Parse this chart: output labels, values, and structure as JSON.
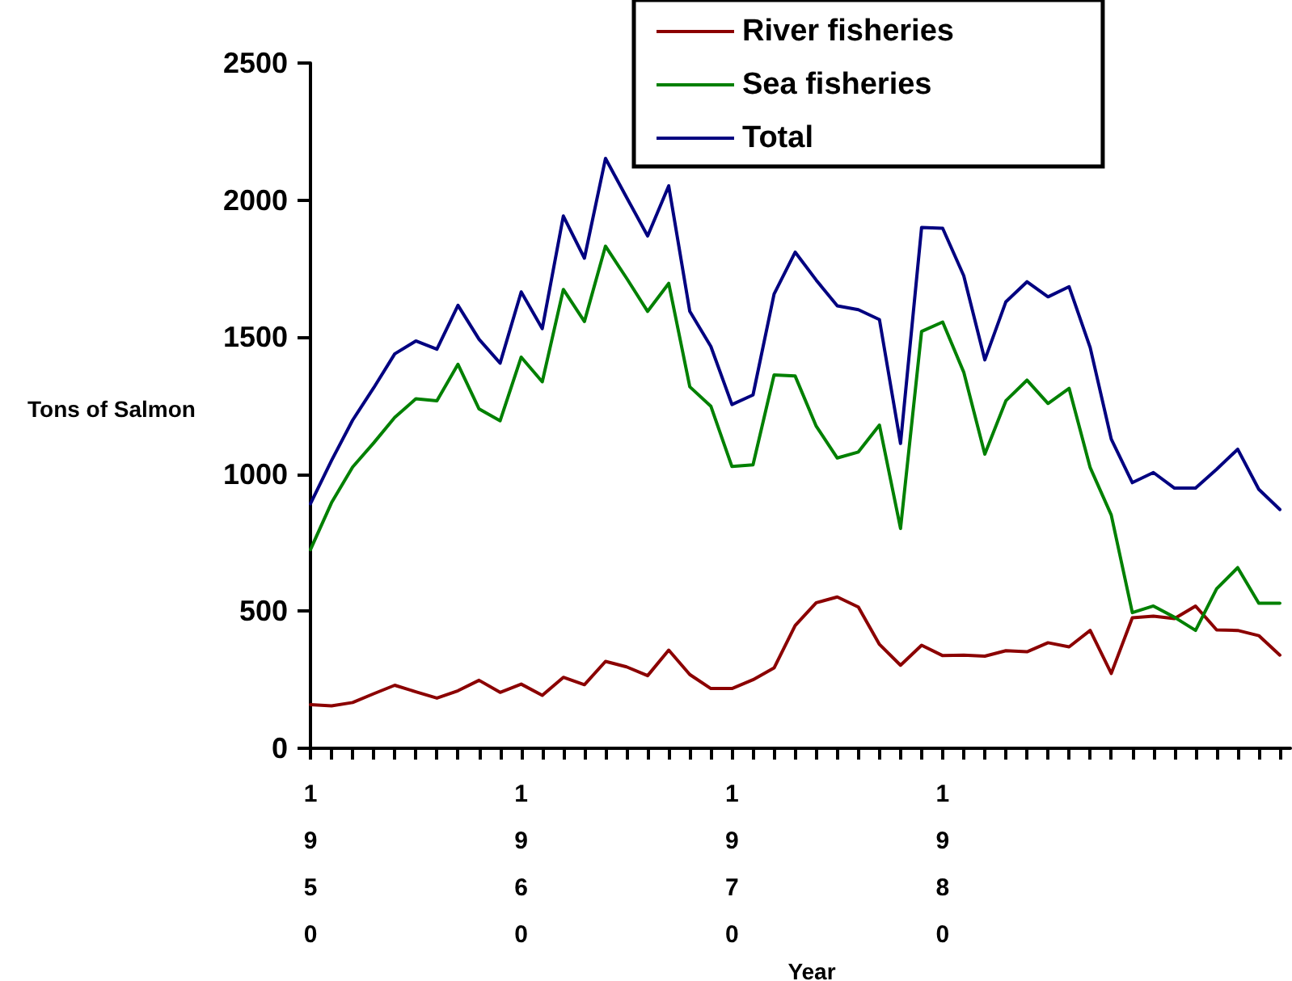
{
  "chart_data": {
    "type": "line",
    "xlabel": "Year",
    "ylabel": "Tons of Salmon",
    "x": [
      1950,
      1951,
      1952,
      1953,
      1954,
      1955,
      1956,
      1957,
      1958,
      1959,
      1960,
      1961,
      1962,
      1963,
      1964,
      1965,
      1966,
      1967,
      1968,
      1969,
      1970,
      1971,
      1972,
      1973,
      1974,
      1975,
      1976,
      1977,
      1978,
      1979,
      1980,
      1981,
      1982,
      1983,
      1984,
      1985,
      1986,
      1987,
      1988,
      1989,
      1990,
      1991,
      1992,
      1993,
      1994,
      1995,
      1996
    ],
    "series": [
      {
        "name": "River fisheries",
        "color": "#8b0000",
        "values": [
          159,
          155,
          167,
          199,
          230,
          206,
          183,
          210,
          248,
          204,
          234,
          193,
          259,
          232,
          317,
          297,
          265,
          358,
          269,
          218,
          218,
          250,
          293,
          448,
          531,
          552,
          515,
          379,
          303,
          376,
          338,
          340,
          336,
          356,
          352,
          385,
          370,
          430,
          273,
          476,
          482,
          473,
          519,
          432,
          430,
          411,
          340
        ]
      },
      {
        "name": "Sea fisheries",
        "color": "#008000",
        "values": [
          725,
          896,
          1026,
          1114,
          1207,
          1275,
          1268,
          1401,
          1238,
          1195,
          1427,
          1337,
          1674,
          1557,
          1832,
          1715,
          1594,
          1696,
          1319,
          1248,
          1028,
          1034,
          1362,
          1358,
          1175,
          1059,
          1081,
          1179,
          802,
          1521,
          1555,
          1372,
          1073,
          1268,
          1343,
          1258,
          1313,
          1024,
          851,
          495,
          519,
          478,
          430,
          582,
          659,
          529,
          529
        ]
      },
      {
        "name": "Total",
        "color": "#000080",
        "values": [
          892,
          1050,
          1197,
          1315,
          1439,
          1486,
          1456,
          1616,
          1492,
          1405,
          1665,
          1531,
          1942,
          1788,
          2152,
          2010,
          1869,
          2052,
          1594,
          1466,
          1254,
          1289,
          1657,
          1810,
          1708,
          1614,
          1600,
          1564,
          1112,
          1900,
          1897,
          1724,
          1417,
          1629,
          1702,
          1647,
          1684,
          1462,
          1128,
          969,
          1006,
          949,
          949,
          1018,
          1091,
          945,
          871
        ]
      }
    ],
    "xlim": [
      1950,
      1996.5
    ],
    "xticks": [
      {
        "value": 1950,
        "label": "1950"
      },
      {
        "value": 1951,
        "label": null
      },
      {
        "value": 1952,
        "label": null
      },
      {
        "value": 1953,
        "label": null
      },
      {
        "value": 1954,
        "label": null
      },
      {
        "value": 1955,
        "label": null
      },
      {
        "value": 1956,
        "label": null
      },
      {
        "value": 1957,
        "label": null
      },
      {
        "value": 1958,
        "label": null
      },
      {
        "value": 1959,
        "label": null
      },
      {
        "value": 1960,
        "label": "1960"
      },
      {
        "value": 1961,
        "label": null
      },
      {
        "value": 1962,
        "label": null
      },
      {
        "value": 1963,
        "label": null
      },
      {
        "value": 1964,
        "label": null
      },
      {
        "value": 1965,
        "label": null
      },
      {
        "value": 1966,
        "label": null
      },
      {
        "value": 1967,
        "label": null
      },
      {
        "value": 1968,
        "label": null
      },
      {
        "value": 1969,
        "label": null
      },
      {
        "value": 1970,
        "label": "1970"
      },
      {
        "value": 1971,
        "label": null
      },
      {
        "value": 1972,
        "label": null
      },
      {
        "value": 1973,
        "label": null
      },
      {
        "value": 1974,
        "label": null
      },
      {
        "value": 1975,
        "label": null
      },
      {
        "value": 1976,
        "label": null
      },
      {
        "value": 1977,
        "label": null
      },
      {
        "value": 1978,
        "label": null
      },
      {
        "value": 1979,
        "label": null
      },
      {
        "value": 1980,
        "label": "1980"
      },
      {
        "value": 1981,
        "label": null
      },
      {
        "value": 1982,
        "label": null
      },
      {
        "value": 1983,
        "label": null
      },
      {
        "value": 1984,
        "label": null
      },
      {
        "value": 1985,
        "label": null
      },
      {
        "value": 1986,
        "label": null
      },
      {
        "value": 1987,
        "label": null
      },
      {
        "value": 1988,
        "label": null
      },
      {
        "value": 1989,
        "label": null
      },
      {
        "value": 1990,
        "label": null
      },
      {
        "value": 1991,
        "label": null
      },
      {
        "value": 1992,
        "label": null
      },
      {
        "value": 1993,
        "label": null
      },
      {
        "value": 1994,
        "label": null
      },
      {
        "value": 1995,
        "label": null
      },
      {
        "value": 1996,
        "label": null
      }
    ],
    "ylim": [
      0,
      2500
    ],
    "yticks": [
      0,
      500,
      1000,
      1500,
      2000,
      2500
    ],
    "grid": false,
    "legend": "top right",
    "marker": "none",
    "line_style": "solid"
  }
}
